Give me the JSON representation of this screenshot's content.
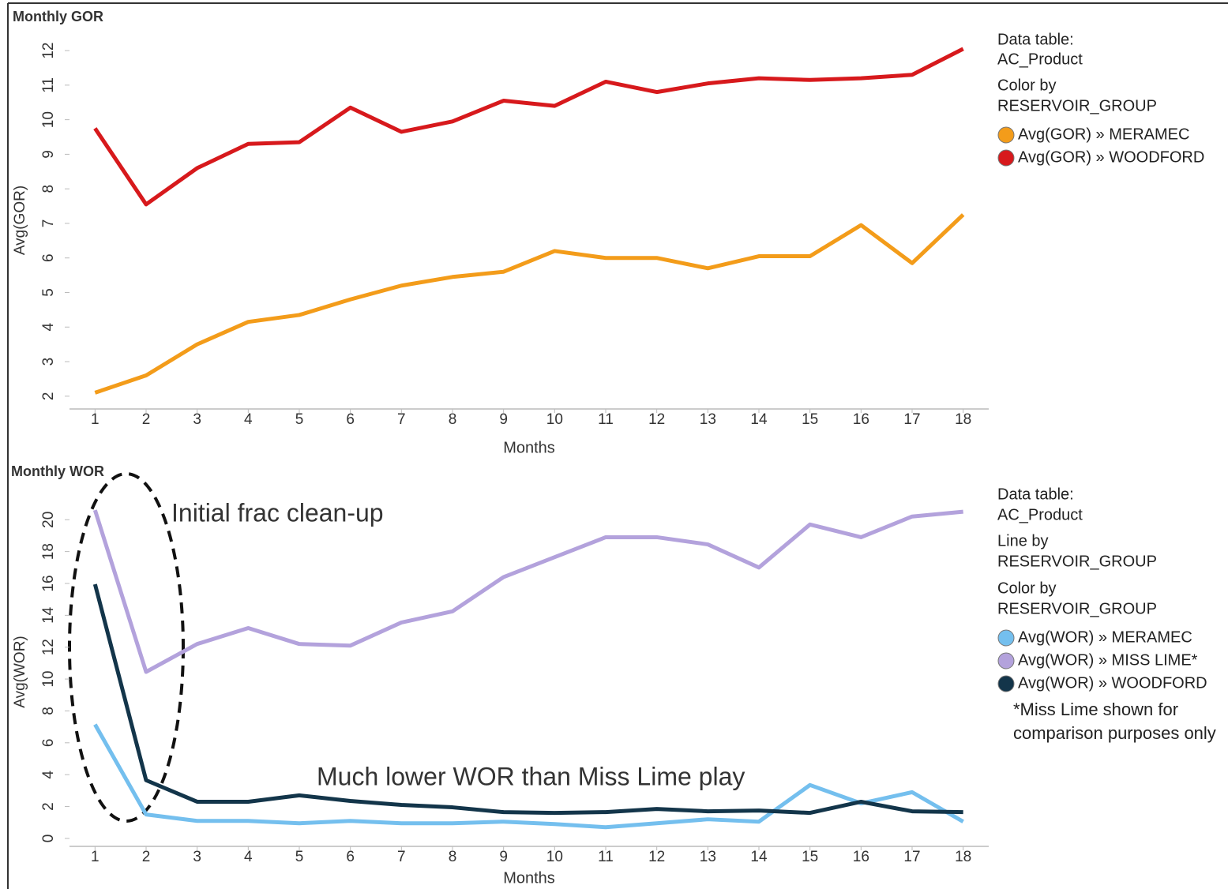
{
  "chart_data": [
    {
      "type": "line",
      "title": "Monthly GOR",
      "x_label": "Months",
      "y_label": "Avg(GOR)",
      "x": [
        1,
        2,
        3,
        4,
        5,
        6,
        7,
        8,
        9,
        10,
        11,
        12,
        13,
        14,
        15,
        16,
        17,
        18
      ],
      "xlim": [
        0.5,
        18.5
      ],
      "xticks": [
        1,
        2,
        3,
        4,
        5,
        6,
        7,
        8,
        9,
        10,
        11,
        12,
        13,
        14,
        15,
        16,
        17,
        18
      ],
      "ylim": [
        1.63,
        12.55
      ],
      "yticks": [
        2,
        3,
        4,
        5,
        6,
        7,
        8,
        9,
        10,
        11,
        12
      ],
      "legend_info": [
        "Data table:",
        "AC_Product",
        "Color by",
        "RESERVOIR_GROUP"
      ],
      "series": [
        {
          "name": "Avg(GOR) » MERAMEC",
          "color": "#f39c1a",
          "values": [
            2.1,
            2.6,
            3.5,
            4.15,
            4.35,
            4.8,
            5.2,
            5.45,
            5.6,
            6.2,
            6.0,
            6.0,
            5.7,
            6.05,
            6.05,
            6.95,
            5.85,
            7.25
          ]
        },
        {
          "name": "Avg(GOR) » WOODFORD",
          "color": "#d7191c",
          "values": [
            9.75,
            7.55,
            8.6,
            9.3,
            9.35,
            10.35,
            9.65,
            9.95,
            10.55,
            10.4,
            11.1,
            10.8,
            11.05,
            11.2,
            11.15,
            11.2,
            11.3,
            12.05
          ]
        }
      ]
    },
    {
      "type": "line",
      "title": "Monthly WOR",
      "x_label": "Months",
      "y_label": "Avg(WOR)",
      "x": [
        1,
        2,
        3,
        4,
        5,
        6,
        7,
        8,
        9,
        10,
        11,
        12,
        13,
        14,
        15,
        16,
        17,
        18
      ],
      "xlim": [
        0.5,
        18.5
      ],
      "xticks": [
        1,
        2,
        3,
        4,
        5,
        6,
        7,
        8,
        9,
        10,
        11,
        12,
        13,
        14,
        15,
        16,
        17,
        18
      ],
      "ylim": [
        -0.5,
        21.4
      ],
      "yticks": [
        0,
        2,
        4,
        6,
        8,
        10,
        12,
        14,
        16,
        18,
        20
      ],
      "legend_info": [
        "Data table:",
        "AC_Product",
        "Line by",
        "RESERVOIR_GROUP",
        "Color by",
        "RESERVOIR_GROUP"
      ],
      "annotations": [
        "Initial frac clean-up",
        "Much lower WOR than Miss Lime play"
      ],
      "note": "*Miss Lime shown for comparison purposes only",
      "series": [
        {
          "name": "Avg(WOR) » MERAMEC",
          "color": "#74bfee",
          "values": [
            7.15,
            1.5,
            1.1,
            1.1,
            0.95,
            1.1,
            0.95,
            0.95,
            1.05,
            0.9,
            0.7,
            0.95,
            1.2,
            1.05,
            3.35,
            2.2,
            2.9,
            1.05
          ]
        },
        {
          "name": "Avg(WOR) » MISS LIME*",
          "color": "#b3a2dc",
          "values": [
            20.6,
            10.45,
            12.2,
            13.2,
            12.2,
            12.1,
            13.55,
            14.25,
            16.4,
            17.65,
            18.9,
            18.9,
            18.45,
            17.0,
            19.7,
            18.9,
            20.2,
            20.5
          ]
        },
        {
          "name": "Avg(WOR) » WOODFORD",
          "color": "#13354a",
          "values": [
            15.95,
            3.65,
            2.3,
            2.3,
            2.7,
            2.35,
            2.1,
            1.95,
            1.65,
            1.6,
            1.65,
            1.85,
            1.7,
            1.75,
            1.6,
            2.3,
            1.7,
            1.65
          ]
        }
      ]
    }
  ]
}
